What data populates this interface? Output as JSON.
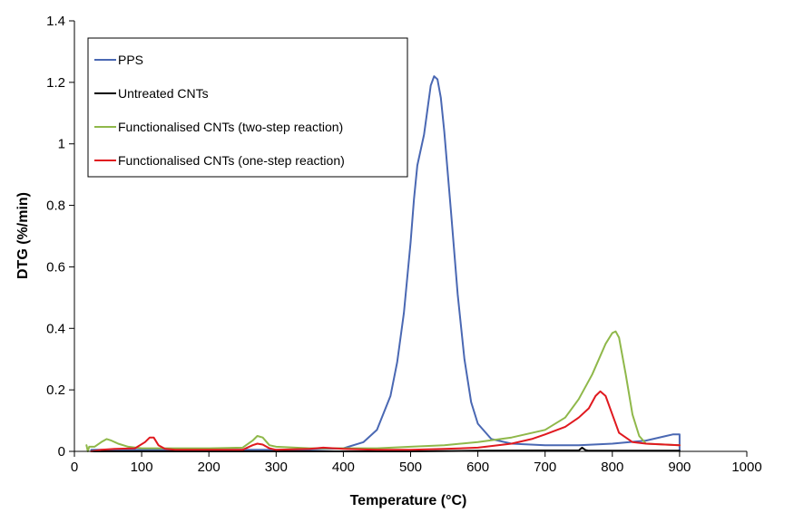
{
  "chart_data": {
    "type": "line",
    "title": "",
    "xlabel": "Temperature (°C)",
    "ylabel": "DTG (%/min)",
    "xlim": [
      0,
      1000
    ],
    "ylim": [
      0,
      1.4
    ],
    "xticks": [
      "0",
      "100",
      "200",
      "300",
      "400",
      "500",
      "600",
      "700",
      "800",
      "900",
      "1000"
    ],
    "yticks": [
      "0",
      "0.2",
      "0.4",
      "0.6",
      "0.8",
      "1",
      "1.2",
      "1.4"
    ],
    "grid": false,
    "legend": "top-left",
    "series": [
      {
        "name": "PPS",
        "color": "#4a68b3",
        "x": [
          25,
          50,
          100,
          150,
          200,
          250,
          300,
          350,
          400,
          430,
          450,
          470,
          480,
          490,
          500,
          505,
          510,
          520,
          530,
          535,
          540,
          545,
          550,
          560,
          570,
          580,
          590,
          600,
          620,
          650,
          700,
          750,
          800,
          850,
          880,
          890,
          900,
          900
        ],
        "y": [
          0.005,
          0.005,
          0.005,
          0.005,
          0.005,
          0.005,
          0.005,
          0.006,
          0.01,
          0.03,
          0.07,
          0.18,
          0.29,
          0.45,
          0.68,
          0.82,
          0.93,
          1.03,
          1.19,
          1.22,
          1.21,
          1.15,
          1.04,
          0.78,
          0.51,
          0.3,
          0.16,
          0.09,
          0.04,
          0.025,
          0.02,
          0.02,
          0.025,
          0.035,
          0.05,
          0.055,
          0.055,
          0.005
        ]
      },
      {
        "name": "Untreated CNTs",
        "color": "#000000",
        "x": [
          25,
          100,
          200,
          300,
          400,
          500,
          600,
          700,
          750,
          755,
          760,
          765,
          800,
          850,
          900
        ],
        "y": [
          0,
          0,
          0,
          0,
          0,
          0,
          0.002,
          0.003,
          0.003,
          0.012,
          0.004,
          0.002,
          0.002,
          0.002,
          0.002
        ]
      },
      {
        "name": "Functionalised CNTs (two-step reaction)",
        "color": "#8fb84a",
        "x": [
          18,
          20,
          22,
          30,
          40,
          48,
          55,
          65,
          80,
          100,
          150,
          200,
          250,
          265,
          272,
          280,
          290,
          300,
          350,
          400,
          450,
          500,
          550,
          600,
          650,
          700,
          730,
          750,
          770,
          790,
          800,
          805,
          810,
          820,
          830,
          840,
          850,
          900
        ],
        "y": [
          0.02,
          0.0,
          0.015,
          0.015,
          0.03,
          0.04,
          0.035,
          0.025,
          0.015,
          0.01,
          0.01,
          0.01,
          0.012,
          0.035,
          0.05,
          0.045,
          0.02,
          0.015,
          0.01,
          0.01,
          0.01,
          0.015,
          0.02,
          0.03,
          0.045,
          0.07,
          0.11,
          0.17,
          0.25,
          0.35,
          0.385,
          0.39,
          0.37,
          0.25,
          0.12,
          0.05,
          0.025,
          0.02
        ]
      },
      {
        "name": "Functionalised CNTs (one-step reaction)",
        "color": "#e0191f",
        "x": [
          25,
          40,
          60,
          90,
          105,
          112,
          118,
          125,
          135,
          150,
          200,
          250,
          265,
          272,
          280,
          290,
          300,
          350,
          370,
          400,
          450,
          500,
          550,
          600,
          650,
          680,
          700,
          730,
          750,
          765,
          775,
          782,
          790,
          800,
          810,
          830,
          850,
          900
        ],
        "y": [
          0.0,
          0.005,
          0.008,
          0.01,
          0.03,
          0.045,
          0.045,
          0.02,
          0.008,
          0.005,
          0.005,
          0.005,
          0.02,
          0.025,
          0.022,
          0.01,
          0.005,
          0.008,
          0.012,
          0.008,
          0.005,
          0.005,
          0.008,
          0.012,
          0.025,
          0.04,
          0.055,
          0.08,
          0.11,
          0.14,
          0.18,
          0.195,
          0.18,
          0.12,
          0.06,
          0.03,
          0.025,
          0.02
        ]
      }
    ]
  }
}
